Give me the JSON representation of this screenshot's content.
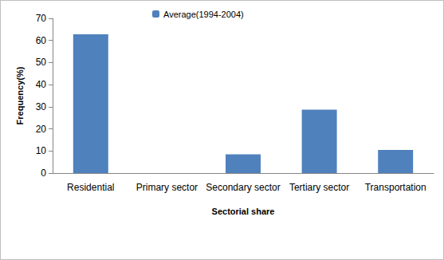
{
  "chart_data": {
    "type": "bar",
    "x_label": "Sectorial share",
    "y_label": "Frequency(%)",
    "categories": [
      "Residential",
      "Primary sector",
      "Secondary sector",
      "Tertiary sector",
      "Transportation"
    ],
    "series": [
      {
        "name": "Average(1994-2004)",
        "color": "#4f81bd",
        "values": [
          62.8,
          0,
          8.5,
          28.7,
          10.5
        ]
      }
    ],
    "ylim": [
      0,
      70
    ],
    "yticks": [
      0,
      10,
      20,
      30,
      40,
      50,
      60,
      70
    ],
    "grid": false,
    "legend": "top-left"
  }
}
